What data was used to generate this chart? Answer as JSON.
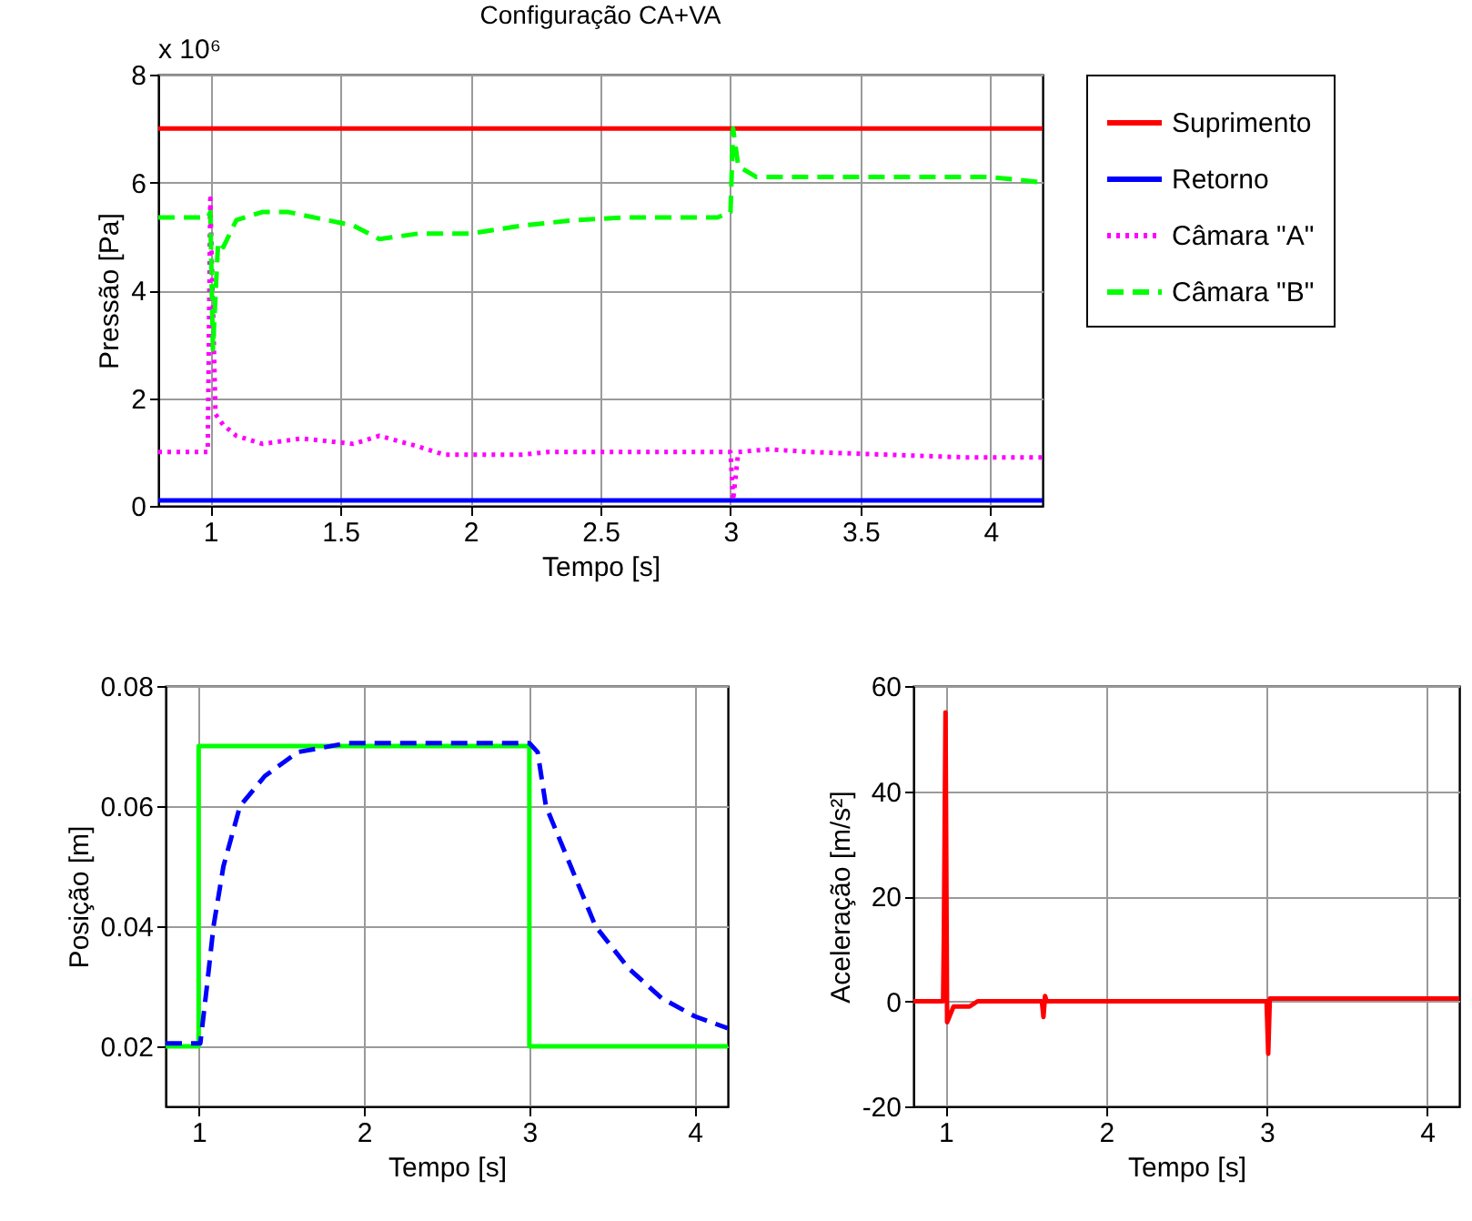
{
  "chart_data": [
    {
      "type": "line",
      "title": "Configuração CA+VA",
      "xlabel": "Tempo [s]",
      "ylabel": "Pressão [Pa]",
      "annotations": [
        "x 10⁶"
      ],
      "xlim": [
        0.8,
        4.2
      ],
      "xticks": [
        1,
        1.5,
        2,
        2.5,
        3,
        3.5,
        4
      ],
      "ylim": [
        0,
        8
      ],
      "yticks": [
        0,
        2,
        4,
        6,
        8
      ],
      "grid": true,
      "legend": "right",
      "series": [
        {
          "name": "Suprimento",
          "color": "#ff0000",
          "line_style": "solid",
          "x": [
            0.8,
            4.2
          ],
          "values": [
            7.0,
            7.0
          ]
        },
        {
          "name": "Retorno",
          "color": "#0000ff",
          "line_style": "solid",
          "x": [
            0.8,
            4.2
          ],
          "values": [
            0.1,
            0.1
          ]
        },
        {
          "name": "Câmara \"A\"",
          "color": "#ff00ff",
          "line_style": "dotted",
          "x": [
            0.8,
            0.99,
            1.0,
            1.02,
            1.05,
            1.1,
            1.2,
            1.35,
            1.55,
            1.65,
            1.8,
            1.9,
            2.2,
            2.3,
            3.0,
            3.01,
            3.03,
            3.15,
            3.3,
            3.6,
            3.9,
            4.2
          ],
          "values": [
            1.0,
            1.0,
            5.7,
            1.7,
            1.5,
            1.3,
            1.15,
            1.25,
            1.15,
            1.3,
            1.1,
            0.95,
            0.95,
            1.0,
            1.0,
            0.1,
            1.0,
            1.05,
            1.0,
            0.95,
            0.9,
            0.9
          ]
        },
        {
          "name": "Câmara \"B\"",
          "color": "#00ff00",
          "line_style": "dashed",
          "x": [
            0.8,
            0.99,
            1.0,
            1.01,
            1.03,
            1.05,
            1.1,
            1.2,
            1.3,
            1.45,
            1.55,
            1.65,
            1.8,
            2.0,
            2.2,
            2.4,
            2.6,
            2.95,
            3.0,
            3.01,
            3.03,
            3.1,
            4.0,
            4.2
          ],
          "values": [
            5.35,
            5.35,
            5.45,
            2.9,
            4.9,
            4.8,
            5.3,
            5.45,
            5.45,
            5.3,
            5.2,
            4.95,
            5.05,
            5.05,
            5.2,
            5.3,
            5.35,
            5.35,
            5.45,
            7.0,
            6.3,
            6.1,
            6.1,
            6.0
          ]
        }
      ]
    },
    {
      "type": "line",
      "xlabel": "Tempo [s]",
      "ylabel": "Posição [m]",
      "xlim": [
        0.8,
        4.2
      ],
      "xticks": [
        1,
        2,
        3,
        4
      ],
      "ylim": [
        0.01,
        0.08
      ],
      "yticks": [
        0.02,
        0.04,
        0.06,
        0.08
      ],
      "grid": true,
      "series": [
        {
          "color": "#00ff00",
          "line_style": "solid",
          "x": [
            0.8,
            1.0,
            1.0,
            3.0,
            3.0,
            4.2
          ],
          "values": [
            0.02,
            0.02,
            0.07,
            0.07,
            0.02,
            0.02
          ]
        },
        {
          "color": "#0000ff",
          "line_style": "dashed",
          "x": [
            0.8,
            1.01,
            1.05,
            1.09,
            1.15,
            1.25,
            1.4,
            1.6,
            1.9,
            3.0,
            3.05,
            3.1,
            3.25,
            3.4,
            3.6,
            3.8,
            4.0,
            4.2
          ],
          "values": [
            0.0205,
            0.0205,
            0.03,
            0.04,
            0.05,
            0.06,
            0.065,
            0.069,
            0.0705,
            0.0705,
            0.069,
            0.06,
            0.05,
            0.04,
            0.033,
            0.028,
            0.025,
            0.023
          ]
        }
      ]
    },
    {
      "type": "line",
      "xlabel": "Tempo [s]",
      "ylabel": "Aceleração [m/s²]",
      "xlim": [
        0.8,
        4.2
      ],
      "xticks": [
        1,
        2,
        3,
        4
      ],
      "ylim": [
        -20,
        60
      ],
      "yticks": [
        -20,
        0,
        20,
        40,
        60
      ],
      "grid": true,
      "series": [
        {
          "color": "#ff0000",
          "line_style": "solid",
          "x": [
            0.8,
            0.985,
            0.99,
            1.0,
            1.01,
            1.05,
            1.15,
            1.2,
            1.6,
            1.61,
            1.62,
            1.63,
            3.0,
            3.01,
            3.02,
            4.2
          ],
          "values": [
            0,
            0,
            13,
            55,
            -4,
            -1,
            -1,
            0,
            0,
            -3,
            1,
            0,
            0,
            -10,
            0.5,
            0.5
          ]
        }
      ]
    }
  ]
}
